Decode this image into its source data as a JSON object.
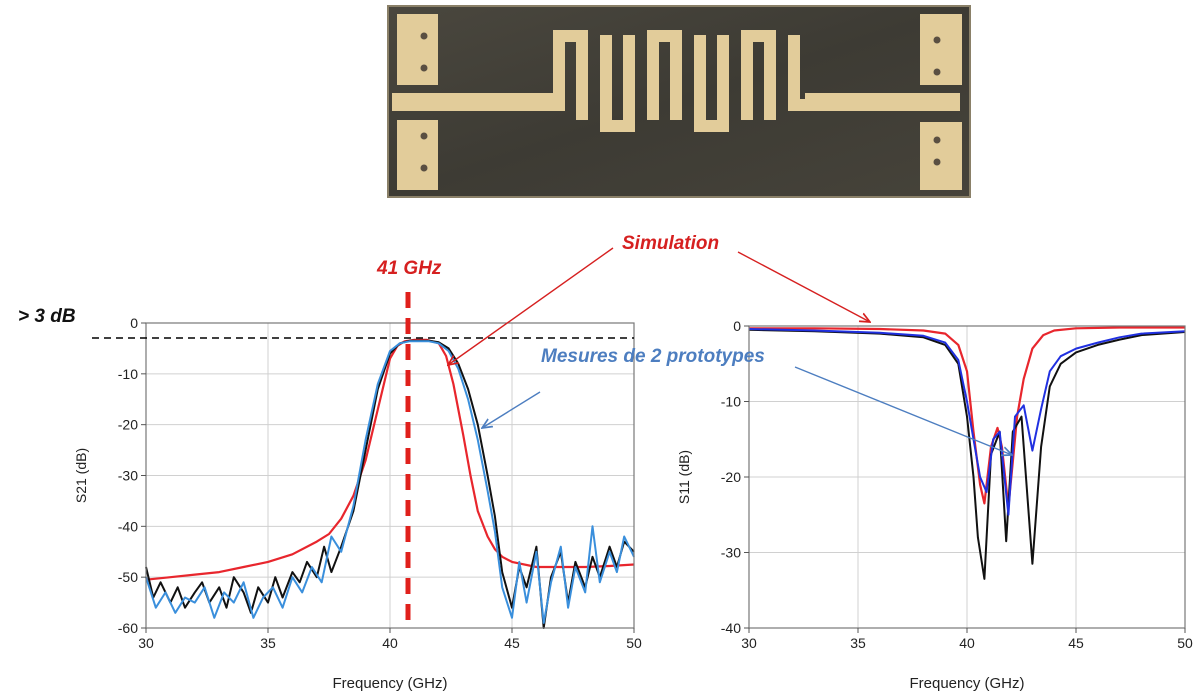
{
  "annotations": {
    "simulation": "Simulation",
    "mesures": "Mesures de 2 prototypes",
    "center_freq": "41 GHz",
    "threshold": "> 3 dB"
  },
  "colors": {
    "simulation": "#e8262d",
    "measure_black": "#111111",
    "measure_light_blue": "#3a8fdc",
    "measure_blue": "#2030e0",
    "annotation_red": "#d62020",
    "annotation_blue": "#4d7ec0"
  },
  "photo": {
    "description_icon": "filter-prototype-photo"
  },
  "chart_data": [
    {
      "type": "line",
      "xlabel": "Frequency (GHz)",
      "ylabel": "S21 (dB)",
      "xlim": [
        30,
        50
      ],
      "ylim": [
        -60,
        0
      ],
      "xticks": [
        30,
        35,
        40,
        45,
        50
      ],
      "yticks": [
        0,
        -10,
        -20,
        -30,
        -40,
        -50,
        -60
      ],
      "grid": true,
      "series": [
        {
          "name": "Simulation",
          "color": "#e8262d",
          "x": [
            30,
            31,
            32,
            33,
            34,
            35,
            36,
            37,
            37.5,
            38,
            38.5,
            39,
            39.5,
            40,
            40.3,
            40.6,
            41,
            41.5,
            42,
            42.3,
            42.6,
            43,
            43.3,
            43.6,
            44,
            44.3,
            44.6,
            45,
            46,
            47,
            48,
            49,
            50
          ],
          "y": [
            -50.5,
            -50,
            -49.5,
            -49,
            -48,
            -47,
            -45.5,
            -43,
            -41.5,
            -38.5,
            -34,
            -27,
            -17,
            -7,
            -4.5,
            -3.6,
            -3.3,
            -3.3,
            -4,
            -6.5,
            -12,
            -22,
            -30,
            -37,
            -42,
            -44.5,
            -46,
            -47,
            -48,
            -48,
            -48,
            -47.8,
            -47.5
          ]
        },
        {
          "name": "",
          "color": "#111111",
          "x": [
            30,
            30.3,
            30.6,
            31,
            31.3,
            31.6,
            32,
            32.3,
            32.6,
            33,
            33.3,
            33.6,
            34,
            34.3,
            34.6,
            35,
            35.3,
            35.6,
            36,
            36.3,
            36.6,
            37,
            37.3,
            37.6,
            38,
            38.5,
            39,
            39.5,
            40,
            40.4,
            40.8,
            41.2,
            41.6,
            42,
            42.4,
            42.8,
            43.2,
            43.6,
            44,
            44.3,
            44.6,
            45,
            45.3,
            45.6,
            46,
            46.3,
            46.6,
            47,
            47.3,
            47.6,
            48,
            48.3,
            48.6,
            49,
            49.3,
            49.6,
            50
          ],
          "y": [
            -48,
            -54,
            -51,
            -55,
            -52,
            -56,
            -53,
            -51,
            -55,
            -52,
            -56,
            -50,
            -53,
            -57,
            -52,
            -55,
            -50,
            -54,
            -49,
            -51,
            -47,
            -50,
            -44,
            -49,
            -44,
            -37,
            -25,
            -13,
            -6,
            -4,
            -3.5,
            -3.5,
            -3.5,
            -3.8,
            -5,
            -8,
            -13,
            -20,
            -30,
            -38,
            -49,
            -56,
            -48,
            -52,
            -44,
            -60,
            -50,
            -45,
            -55,
            -47,
            -52,
            -46,
            -50,
            -44,
            -48,
            -43,
            -45
          ]
        },
        {
          "name": "",
          "color": "#3a8fdc",
          "x": [
            30,
            30.4,
            30.8,
            31.2,
            31.6,
            32,
            32.4,
            32.8,
            33.2,
            33.6,
            34,
            34.4,
            34.8,
            35.2,
            35.6,
            36,
            36.4,
            36.8,
            37.2,
            37.6,
            38,
            38.5,
            39,
            39.5,
            40,
            40.4,
            40.8,
            41.2,
            41.6,
            42,
            42.4,
            42.8,
            43.2,
            43.6,
            44,
            44.3,
            44.6,
            45,
            45.3,
            45.6,
            46,
            46.3,
            46.6,
            47,
            47.3,
            47.6,
            48,
            48.3,
            48.6,
            49,
            49.3,
            49.6,
            50
          ],
          "y": [
            -50,
            -56,
            -53,
            -57,
            -54,
            -55,
            -52,
            -58,
            -53,
            -55,
            -51,
            -58,
            -54,
            -52,
            -56,
            -50,
            -53,
            -48,
            -51,
            -42,
            -45,
            -36,
            -23,
            -12,
            -5.5,
            -4,
            -3.6,
            -3.6,
            -3.6,
            -4,
            -5.5,
            -9,
            -15,
            -23,
            -33,
            -41,
            -52,
            -58,
            -47,
            -55,
            -45,
            -59,
            -51,
            -44,
            -56,
            -48,
            -53,
            -40,
            -51,
            -45,
            -49,
            -42,
            -46
          ]
        }
      ]
    },
    {
      "type": "line",
      "xlabel": "Frequency (GHz)",
      "ylabel": "S11 (dB)",
      "xlim": [
        30,
        50
      ],
      "ylim": [
        -40,
        0
      ],
      "xticks": [
        30,
        35,
        40,
        45,
        50
      ],
      "yticks": [
        0,
        -10,
        -20,
        -30,
        -40
      ],
      "grid": true,
      "series": [
        {
          "name": "Simulation",
          "color": "#e8262d",
          "x": [
            30,
            33,
            36,
            38,
            39,
            39.6,
            40,
            40.3,
            40.6,
            40.8,
            41.1,
            41.4,
            41.6,
            41.9,
            42.1,
            42.3,
            42.6,
            43,
            43.5,
            44,
            45,
            47,
            50
          ],
          "y": [
            -0.3,
            -0.3,
            -0.4,
            -0.6,
            -1,
            -2.5,
            -6,
            -14,
            -21,
            -23.5,
            -16,
            -13.5,
            -16,
            -24,
            -18,
            -12,
            -7,
            -3,
            -1.2,
            -0.6,
            -0.3,
            -0.2,
            -0.2
          ]
        },
        {
          "name": "",
          "color": "#111111",
          "x": [
            30,
            33,
            36,
            38,
            39,
            39.6,
            40,
            40.3,
            40.5,
            40.8,
            41.1,
            41.5,
            41.8,
            42.1,
            42.5,
            43,
            43.4,
            43.8,
            44.3,
            45,
            46,
            47,
            48,
            50
          ],
          "y": [
            -0.5,
            -0.7,
            -1,
            -1.5,
            -2.5,
            -5,
            -12,
            -20,
            -28,
            -33.5,
            -17,
            -14,
            -28.5,
            -14,
            -12,
            -31.5,
            -16,
            -8,
            -5,
            -3.5,
            -2.5,
            -1.8,
            -1.2,
            -0.8
          ]
        },
        {
          "name": "",
          "color": "#2030e0",
          "x": [
            30,
            33,
            36,
            38,
            39,
            39.6,
            40,
            40.3,
            40.6,
            40.9,
            41.2,
            41.5,
            41.9,
            42.2,
            42.6,
            43,
            43.4,
            43.8,
            44.3,
            45,
            46,
            47,
            48,
            50
          ],
          "y": [
            -0.4,
            -0.6,
            -0.9,
            -1.3,
            -2.2,
            -4.5,
            -10,
            -15,
            -20,
            -22,
            -15,
            -14,
            -25,
            -12,
            -10.5,
            -16.5,
            -11,
            -6,
            -4,
            -3,
            -2.2,
            -1.5,
            -1,
            -0.7
          ]
        }
      ]
    }
  ]
}
